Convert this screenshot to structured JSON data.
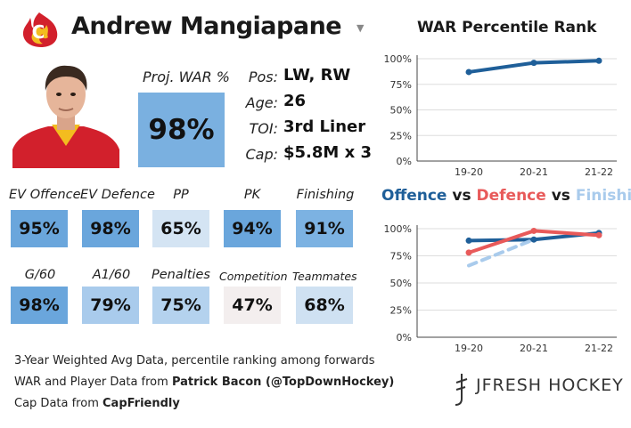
{
  "player": {
    "name": "Andrew Mangiapane",
    "dropdown_icon": "chevron-down-icon",
    "proj_war_label": "Proj. WAR %",
    "proj_war_value": "98%",
    "info": [
      {
        "label": "Pos:",
        "value": "LW, RW"
      },
      {
        "label": "Age:",
        "value": "26"
      },
      {
        "label": "TOI:",
        "value": "3rd Liner"
      },
      {
        "label": "Cap:",
        "value": "$5.8M x 3"
      }
    ]
  },
  "stats": [
    {
      "label": "EV Offence",
      "value": "95%",
      "color": "#6aa6dc"
    },
    {
      "label": "EV Defence",
      "value": "98%",
      "color": "#6aa6dc"
    },
    {
      "label": "PP",
      "value": "65%",
      "color": "#d4e4f3"
    },
    {
      "label": "PK",
      "value": "94%",
      "color": "#6aa6dc"
    },
    {
      "label": "Finishing",
      "value": "91%",
      "color": "#7cb2e2"
    },
    {
      "label": "G/60",
      "value": "98%",
      "color": "#6aa6dc"
    },
    {
      "label": "A1/60",
      "value": "79%",
      "color": "#a9cbec"
    },
    {
      "label": "Penalties",
      "value": "75%",
      "color": "#b4d2ee"
    },
    {
      "label": "Competition",
      "value": "47%",
      "color": "#f3eeee"
    },
    {
      "label": "Teammates",
      "value": "68%",
      "color": "#cfe1f2"
    }
  ],
  "footer": {
    "line1": "3-Year Weighted Avg Data, percentile ranking among forwards",
    "line2_prefix": "WAR and Player Data from ",
    "line2_bold": "Patrick Bacon (@TopDownHockey)",
    "line3_prefix": "Cap Data from ",
    "line3_bold": "CapFriendly"
  },
  "brand": "JFRESH HOCKEY",
  "colors": {
    "war_line": "#1f5f99",
    "offence": "#1f5f99",
    "defence": "#e85a5a",
    "finishing": "#a9cbec"
  },
  "chart_data": [
    {
      "type": "line",
      "title": "WAR Percentile Rank",
      "categories": [
        "19-20",
        "20-21",
        "21-22"
      ],
      "yticks": [
        "0%",
        "25%",
        "50%",
        "75%",
        "100%"
      ],
      "ylim": [
        0,
        100
      ],
      "series": [
        {
          "name": "WAR",
          "values": [
            87,
            96,
            98
          ],
          "color": "#1f5f99"
        }
      ]
    },
    {
      "type": "line",
      "title_parts": [
        {
          "text": "Offence",
          "color": "#1f5f99"
        },
        {
          "text": " vs ",
          "color": "#1a1a1a"
        },
        {
          "text": "Defence",
          "color": "#e85a5a"
        },
        {
          "text": " vs ",
          "color": "#1a1a1a"
        },
        {
          "text": "Finishing",
          "color": "#a9cbec"
        }
      ],
      "categories": [
        "19-20",
        "20-21",
        "21-22"
      ],
      "yticks": [
        "0%",
        "25%",
        "50%",
        "75%",
        "100%"
      ],
      "ylim": [
        0,
        100
      ],
      "series": [
        {
          "name": "Offence",
          "values": [
            89,
            90,
            96
          ],
          "color": "#1f5f99"
        },
        {
          "name": "Defence",
          "values": [
            78,
            98,
            94
          ],
          "color": "#e85a5a"
        },
        {
          "name": "Finishing",
          "values": [
            66,
            90,
            null
          ],
          "color": "#a9cbec",
          "dashed": true
        }
      ]
    }
  ]
}
